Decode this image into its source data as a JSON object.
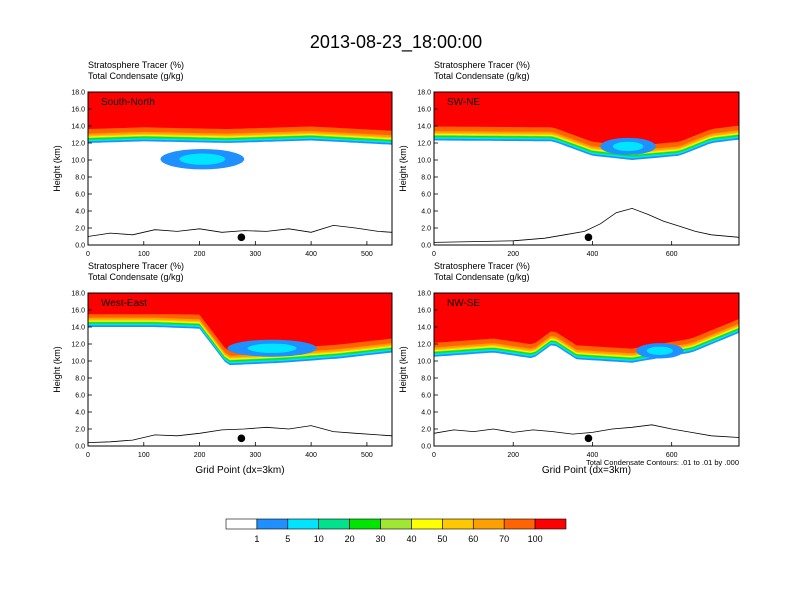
{
  "figure": {
    "title": "2013-08-23_18:00:00",
    "footnote": "Total Condensate Contours: .01 to .01 by .000"
  },
  "colors": {
    "bins": [
      "#ffffff",
      "#1e90ff",
      "#00e5ff",
      "#00e28c",
      "#00e600",
      "#a0e632",
      "#ffff00",
      "#ffc800",
      "#ffa000",
      "#ff6400",
      "#ff0000"
    ],
    "line": "#000000"
  },
  "colorbar": {
    "labels": [
      "1",
      "5",
      "10",
      "20",
      "30",
      "40",
      "50",
      "60",
      "70",
      "100"
    ]
  },
  "chart_data": [
    {
      "type": "heatmap",
      "panel": "South-North",
      "title_line1": "Stratosphere Tracer   (%)",
      "title_line2": "Total Condensate   (g/kg)",
      "xlabel": "",
      "ylabel": "Height (km)",
      "xlim": [
        0,
        545
      ],
      "ylim": [
        0,
        18
      ],
      "xticks": [
        "0",
        "100",
        "200",
        "300",
        "400",
        "500"
      ],
      "yticks": [
        "0.0",
        "2.0",
        "4.0",
        "6.0",
        "8.0",
        "10.0",
        "12.0",
        "14.0",
        "16.0",
        "18.0"
      ],
      "marker_x": 275,
      "tracer_bottom_km": [
        [
          0,
          12.0
        ],
        [
          100,
          12.2
        ],
        [
          250,
          12.0
        ],
        [
          400,
          12.3
        ],
        [
          545,
          11.8
        ]
      ],
      "blob": {
        "x_center": 205,
        "y_center_km": 10.1,
        "x_halfwidth": 75,
        "y_halfwidth_km": 1.2
      },
      "terrain_km": [
        [
          0,
          1.0
        ],
        [
          40,
          1.4
        ],
        [
          80,
          1.2
        ],
        [
          120,
          1.8
        ],
        [
          160,
          1.6
        ],
        [
          200,
          1.9
        ],
        [
          240,
          1.5
        ],
        [
          280,
          1.7
        ],
        [
          320,
          1.6
        ],
        [
          360,
          1.9
        ],
        [
          400,
          1.5
        ],
        [
          440,
          2.3
        ],
        [
          480,
          2.0
        ],
        [
          520,
          1.6
        ],
        [
          545,
          1.5
        ]
      ]
    },
    {
      "type": "heatmap",
      "panel": "SW-NE",
      "title_line1": "Stratosphere Tracer   (%)",
      "title_line2": "Total Condensate   (g/kg)",
      "xlabel": "",
      "ylabel": "Height (km)",
      "xlim": [
        0,
        770
      ],
      "ylim": [
        0,
        18
      ],
      "xticks": [
        "0",
        "200",
        "400",
        "600"
      ],
      "yticks": [
        "0.0",
        "2.0",
        "4.0",
        "6.0",
        "8.0",
        "10.0",
        "12.0",
        "14.0",
        "16.0",
        "18.0"
      ],
      "marker_x": 390,
      "tracer_bottom_km": [
        [
          0,
          12.3
        ],
        [
          300,
          12.2
        ],
        [
          400,
          10.5
        ],
        [
          500,
          10.0
        ],
        [
          620,
          10.5
        ],
        [
          700,
          12.0
        ],
        [
          770,
          12.4
        ]
      ],
      "blob": {
        "x_center": 490,
        "y_center_km": 11.6,
        "x_halfwidth": 70,
        "y_halfwidth_km": 1.0
      },
      "terrain_km": [
        [
          0,
          0.3
        ],
        [
          100,
          0.4
        ],
        [
          200,
          0.5
        ],
        [
          280,
          0.8
        ],
        [
          330,
          1.2
        ],
        [
          380,
          1.6
        ],
        [
          420,
          2.5
        ],
        [
          460,
          3.8
        ],
        [
          500,
          4.3
        ],
        [
          540,
          3.6
        ],
        [
          580,
          2.8
        ],
        [
          620,
          2.2
        ],
        [
          660,
          1.6
        ],
        [
          700,
          1.2
        ],
        [
          770,
          0.9
        ]
      ]
    },
    {
      "type": "heatmap",
      "panel": "West-East",
      "title_line1": "Stratosphere Tracer   (%)",
      "title_line2": "Total Condensate   (g/kg)",
      "xlabel": "Grid Point (dx=3km)",
      "ylabel": "Height (km)",
      "xlim": [
        0,
        545
      ],
      "ylim": [
        0,
        18
      ],
      "xticks": [
        "0",
        "100",
        "200",
        "300",
        "400",
        "500"
      ],
      "yticks": [
        "0.0",
        "2.0",
        "4.0",
        "6.0",
        "8.0",
        "10.0",
        "12.0",
        "14.0",
        "16.0",
        "18.0"
      ],
      "marker_x": 275,
      "tracer_bottom_km": [
        [
          0,
          14.0
        ],
        [
          120,
          14.0
        ],
        [
          200,
          13.8
        ],
        [
          250,
          9.5
        ],
        [
          350,
          9.8
        ],
        [
          450,
          10.3
        ],
        [
          545,
          11.0
        ]
      ],
      "blob": {
        "x_center": 330,
        "y_center_km": 11.5,
        "x_halfwidth": 80,
        "y_halfwidth_km": 1.0
      },
      "terrain_km": [
        [
          0,
          0.4
        ],
        [
          40,
          0.5
        ],
        [
          80,
          0.7
        ],
        [
          120,
          1.3
        ],
        [
          160,
          1.2
        ],
        [
          200,
          1.5
        ],
        [
          240,
          1.9
        ],
        [
          280,
          2.0
        ],
        [
          320,
          2.2
        ],
        [
          360,
          2.0
        ],
        [
          400,
          2.4
        ],
        [
          440,
          1.7
        ],
        [
          480,
          1.5
        ],
        [
          545,
          1.2
        ]
      ]
    },
    {
      "type": "heatmap",
      "panel": "NW-SE",
      "title_line1": "Stratosphere Tracer   (%)",
      "title_line2": "Total Condensate   (g/kg)",
      "xlabel": "Grid Point (dx=3km)",
      "ylabel": "Height (km)",
      "xlim": [
        0,
        770
      ],
      "ylim": [
        0,
        18
      ],
      "xticks": [
        "0",
        "200",
        "400",
        "600"
      ],
      "yticks": [
        "0.0",
        "2.0",
        "4.0",
        "6.0",
        "8.0",
        "10.0",
        "12.0",
        "14.0",
        "16.0",
        "18.0"
      ],
      "marker_x": 390,
      "tracer_bottom_km": [
        [
          0,
          10.5
        ],
        [
          150,
          11.0
        ],
        [
          250,
          10.3
        ],
        [
          300,
          12.0
        ],
        [
          360,
          10.2
        ],
        [
          500,
          9.8
        ],
        [
          650,
          11.0
        ],
        [
          770,
          13.3
        ]
      ],
      "blob": {
        "x_center": 570,
        "y_center_km": 11.2,
        "x_halfwidth": 60,
        "y_halfwidth_km": 0.9
      },
      "terrain_km": [
        [
          0,
          1.5
        ],
        [
          50,
          1.9
        ],
        [
          100,
          1.7
        ],
        [
          150,
          2.0
        ],
        [
          200,
          1.6
        ],
        [
          250,
          1.9
        ],
        [
          300,
          1.7
        ],
        [
          350,
          1.4
        ],
        [
          400,
          1.6
        ],
        [
          450,
          2.0
        ],
        [
          500,
          2.2
        ],
        [
          550,
          2.5
        ],
        [
          600,
          2.0
        ],
        [
          650,
          1.6
        ],
        [
          700,
          1.2
        ],
        [
          770,
          1.0
        ]
      ]
    }
  ]
}
